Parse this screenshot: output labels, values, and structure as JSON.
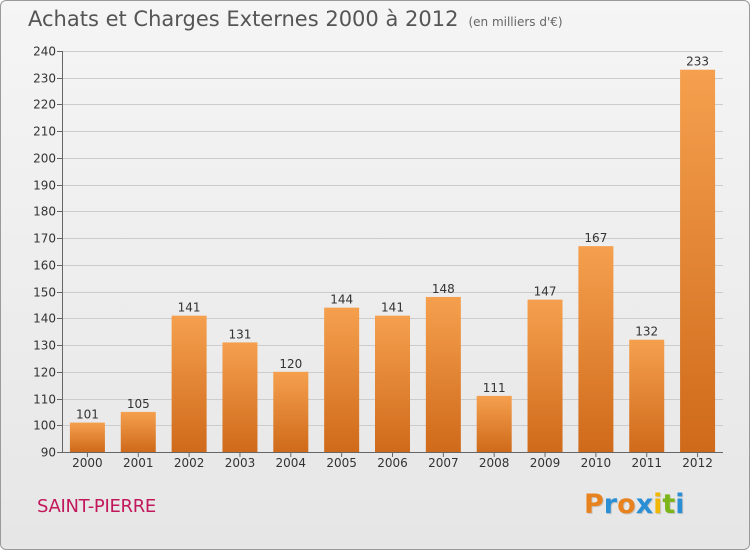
{
  "title": "Achats et Charges Externes 2000 à 2012",
  "subtitle": "(en milliers d'€)",
  "town": "SAINT-PIERRE",
  "logo": {
    "text": "Proxiti",
    "letters": [
      {
        "char": "P",
        "color": "#e8821e"
      },
      {
        "char": "r",
        "color": "#2b8fd6"
      },
      {
        "char": "o",
        "color": "#e8821e"
      },
      {
        "char": "x",
        "color": "#2b8fd6"
      },
      {
        "char": "i",
        "color": "#f2b705"
      },
      {
        "char": "t",
        "color": "#7cb518"
      },
      {
        "char": "i",
        "color": "#2b8fd6"
      }
    ]
  },
  "colors": {
    "bar_light": "#f5a04e",
    "bar_dark": "#cf6a1a",
    "grid": "#cccccc",
    "axis": "#666666"
  },
  "chart_data": {
    "type": "bar",
    "categories": [
      "2000",
      "2001",
      "2002",
      "2003",
      "2004",
      "2005",
      "2006",
      "2007",
      "2008",
      "2009",
      "2010",
      "2011",
      "2012"
    ],
    "values": [
      101,
      105,
      141,
      131,
      120,
      144,
      141,
      148,
      111,
      147,
      167,
      132,
      233
    ],
    "ylim": [
      90,
      240
    ],
    "yticks": [
      90,
      100,
      110,
      120,
      130,
      140,
      150,
      160,
      170,
      180,
      190,
      200,
      210,
      220,
      230,
      240
    ],
    "grid": true,
    "xlabel": "",
    "ylabel": ""
  }
}
